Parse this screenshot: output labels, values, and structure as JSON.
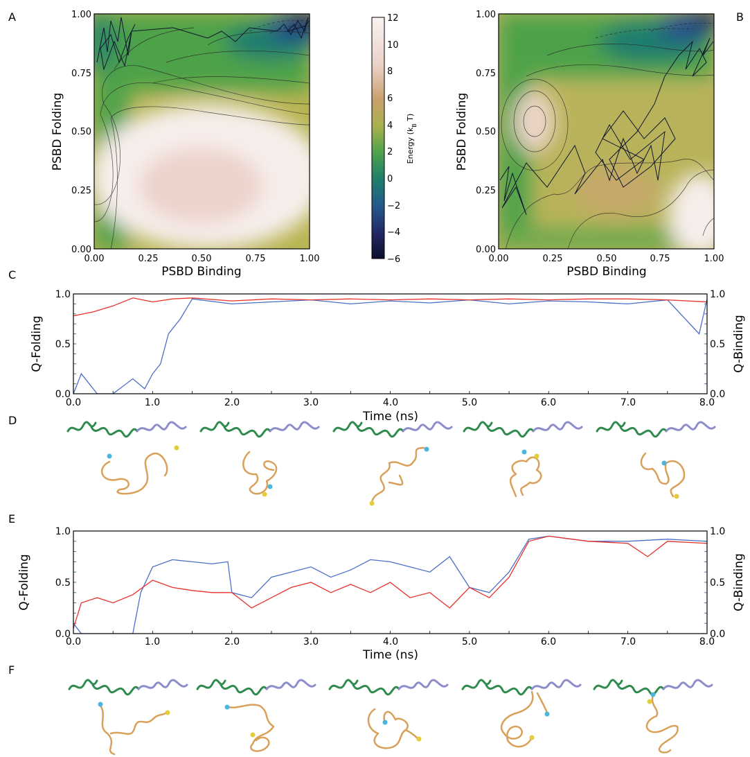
{
  "panels": [
    "A",
    "B",
    "C",
    "D",
    "E",
    "F"
  ],
  "heatmaps": {
    "xlabel": "PSBD Binding",
    "ylabel": "PSBD Folding",
    "ticks": [
      "0.00",
      "0.25",
      "0.50",
      "0.75",
      "1.00"
    ]
  },
  "colorbar": {
    "label": "Energy (k_B T)",
    "ticks": [
      "12",
      "10",
      "8",
      "6",
      "4",
      "2",
      "0",
      "−2",
      "−4",
      "−6"
    ],
    "colors": [
      "#f9f3f1",
      "#ead1c8",
      "#c9a06e",
      "#a9b14e",
      "#4fa24c",
      "#1f7e6b",
      "#245a8c",
      "#232a66",
      "#0c0f2e"
    ]
  },
  "timecourses": {
    "xlabel": "Time (ns)",
    "ylabel_left": "Q-Folding",
    "ylabel_right": "Q-Binding",
    "xticks": [
      "0.0",
      "1.0",
      "2.0",
      "3.0",
      "4.0",
      "5.0",
      "6.0",
      "7.0",
      "8.0"
    ],
    "yticks": [
      "0.0",
      "0.5",
      "1.0"
    ],
    "folding_color": "#e8312b",
    "binding_color": "#4a6fc8"
  },
  "chart_data": [
    {
      "type": "heatmap",
      "panel": "A",
      "xlabel": "PSBD Binding",
      "ylabel": "PSBD Folding",
      "xlim": [
        0,
        1
      ],
      "ylim": [
        0,
        1
      ],
      "value_label": "Energy (k_B T)",
      "value_range": [
        -6,
        12
      ],
      "minima": [
        {
          "x": 0.95,
          "y": 0.96,
          "energy": -5
        },
        {
          "x": 0.55,
          "y": 0.25,
          "energy": 11
        },
        {
          "x": 0.05,
          "y": 0.85,
          "energy": 5
        }
      ]
    },
    {
      "type": "heatmap",
      "panel": "B",
      "xlabel": "PSBD Binding",
      "ylabel": "PSBD Folding",
      "xlim": [
        0,
        1
      ],
      "ylim": [
        0,
        1
      ],
      "value_label": "Energy (k_B T)",
      "value_range": [
        -6,
        12
      ],
      "minima": [
        {
          "x": 0.92,
          "y": 0.95,
          "energy": -4
        },
        {
          "x": 0.17,
          "y": 0.55,
          "energy": 11
        },
        {
          "x": 0.55,
          "y": 0.35,
          "energy": 7
        }
      ]
    },
    {
      "type": "line",
      "panel": "C",
      "xlabel": "Time (ns)",
      "xlim": [
        0,
        8
      ],
      "ylim": [
        0,
        1
      ],
      "series": [
        {
          "name": "Q-Folding",
          "axis": "left",
          "color": "#e8312b",
          "x": [
            0,
            0.25,
            0.5,
            0.75,
            1.0,
            1.25,
            1.5,
            2.0,
            2.5,
            3.0,
            3.5,
            4.0,
            4.5,
            5.0,
            5.5,
            6.0,
            6.5,
            7.0,
            7.5,
            8.0
          ],
          "y": [
            0.78,
            0.82,
            0.88,
            0.96,
            0.92,
            0.95,
            0.96,
            0.93,
            0.95,
            0.94,
            0.95,
            0.94,
            0.95,
            0.94,
            0.95,
            0.94,
            0.95,
            0.95,
            0.94,
            0.92
          ]
        },
        {
          "name": "Q-Binding",
          "axis": "right",
          "color": "#4a6fc8",
          "x": [
            0,
            0.1,
            0.3,
            0.5,
            0.75,
            0.9,
            1.0,
            1.1,
            1.2,
            1.35,
            1.5,
            2.0,
            2.5,
            3.0,
            3.5,
            4.0,
            4.5,
            5.0,
            5.5,
            6.0,
            6.5,
            7.0,
            7.5,
            7.9,
            8.0
          ],
          "y": [
            0.0,
            0.2,
            0.0,
            0.0,
            0.15,
            0.05,
            0.2,
            0.3,
            0.6,
            0.75,
            0.95,
            0.9,
            0.92,
            0.94,
            0.9,
            0.93,
            0.91,
            0.94,
            0.9,
            0.93,
            0.92,
            0.9,
            0.94,
            0.6,
            0.95
          ]
        }
      ]
    },
    {
      "type": "line",
      "panel": "E",
      "xlabel": "Time (ns)",
      "xlim": [
        0,
        8
      ],
      "ylim": [
        0,
        1
      ],
      "series": [
        {
          "name": "Q-Folding",
          "axis": "left",
          "color": "#e8312b",
          "x": [
            0,
            0.1,
            0.3,
            0.5,
            0.75,
            1.0,
            1.25,
            1.5,
            1.75,
            2.0,
            2.25,
            2.5,
            2.75,
            3.0,
            3.25,
            3.5,
            3.75,
            4.0,
            4.25,
            4.5,
            4.75,
            5.0,
            5.25,
            5.5,
            5.75,
            6.0,
            6.5,
            7.0,
            7.25,
            7.5,
            8.0
          ],
          "y": [
            0.05,
            0.3,
            0.35,
            0.3,
            0.38,
            0.52,
            0.45,
            0.42,
            0.4,
            0.4,
            0.25,
            0.35,
            0.45,
            0.5,
            0.4,
            0.48,
            0.4,
            0.5,
            0.35,
            0.4,
            0.25,
            0.45,
            0.35,
            0.55,
            0.9,
            0.95,
            0.9,
            0.88,
            0.75,
            0.9,
            0.88
          ]
        },
        {
          "name": "Q-Binding",
          "axis": "right",
          "color": "#4a6fc8",
          "x": [
            0,
            0.1,
            0.3,
            0.5,
            0.75,
            0.85,
            1.0,
            1.25,
            1.5,
            1.75,
            1.95,
            2.0,
            2.25,
            2.5,
            2.75,
            3.0,
            3.25,
            3.5,
            3.75,
            4.0,
            4.25,
            4.5,
            4.75,
            5.0,
            5.25,
            5.5,
            5.75,
            6.0,
            6.5,
            7.0,
            7.5,
            8.0
          ],
          "y": [
            0.1,
            0.0,
            0.0,
            0.0,
            0.0,
            0.4,
            0.65,
            0.72,
            0.7,
            0.68,
            0.7,
            0.4,
            0.35,
            0.55,
            0.6,
            0.65,
            0.55,
            0.62,
            0.72,
            0.7,
            0.65,
            0.6,
            0.75,
            0.45,
            0.4,
            0.6,
            0.92,
            0.95,
            0.9,
            0.9,
            0.92,
            0.9
          ]
        }
      ]
    }
  ]
}
